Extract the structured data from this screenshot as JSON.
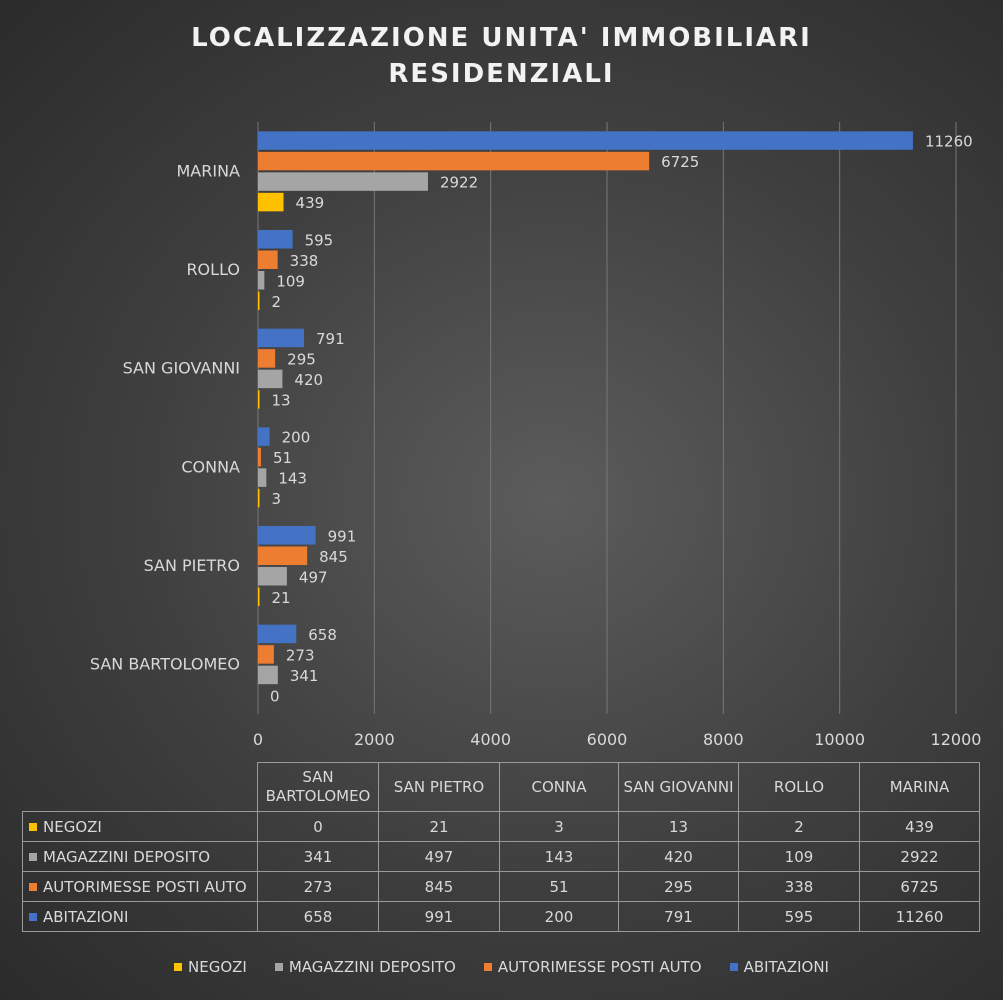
{
  "chart_data": {
    "type": "bar",
    "orientation": "horizontal",
    "title_lines": [
      "LOCALIZZAZIONE UNITA' IMMOBILIARI",
      "RESIDENZIALI"
    ],
    "categories": [
      "SAN BARTOLOMEO",
      "SAN PIETRO",
      "CONNA",
      "SAN GIOVANNI",
      "ROLLO",
      "MARINA"
    ],
    "series": [
      {
        "name": "NEGOZI",
        "color": "#ffc000",
        "values": [
          0,
          21,
          3,
          13,
          2,
          439
        ]
      },
      {
        "name": "MAGAZZINI DEPOSITO",
        "color": "#a5a5a5",
        "values": [
          341,
          497,
          143,
          420,
          109,
          2922
        ]
      },
      {
        "name": "AUTORIMESSE POSTI AUTO",
        "color": "#ed7d31",
        "values": [
          273,
          845,
          51,
          295,
          338,
          6725
        ]
      },
      {
        "name": "ABITAZIONI",
        "color": "#4472c4",
        "values": [
          658,
          991,
          200,
          791,
          595,
          11260
        ]
      }
    ],
    "xlim": [
      0,
      12000
    ],
    "ticks": [
      "0",
      "2000",
      "4000",
      "6000",
      "8000",
      "10000",
      "12000"
    ],
    "grid": true,
    "data_labels": true,
    "data_table": true,
    "legend": "bottom"
  },
  "table": {
    "headers": [
      "SAN BARTOLOMEO",
      "SAN PIETRO",
      "CONNA",
      "SAN GIOVANNI",
      "ROLLO",
      "MARINA"
    ]
  }
}
